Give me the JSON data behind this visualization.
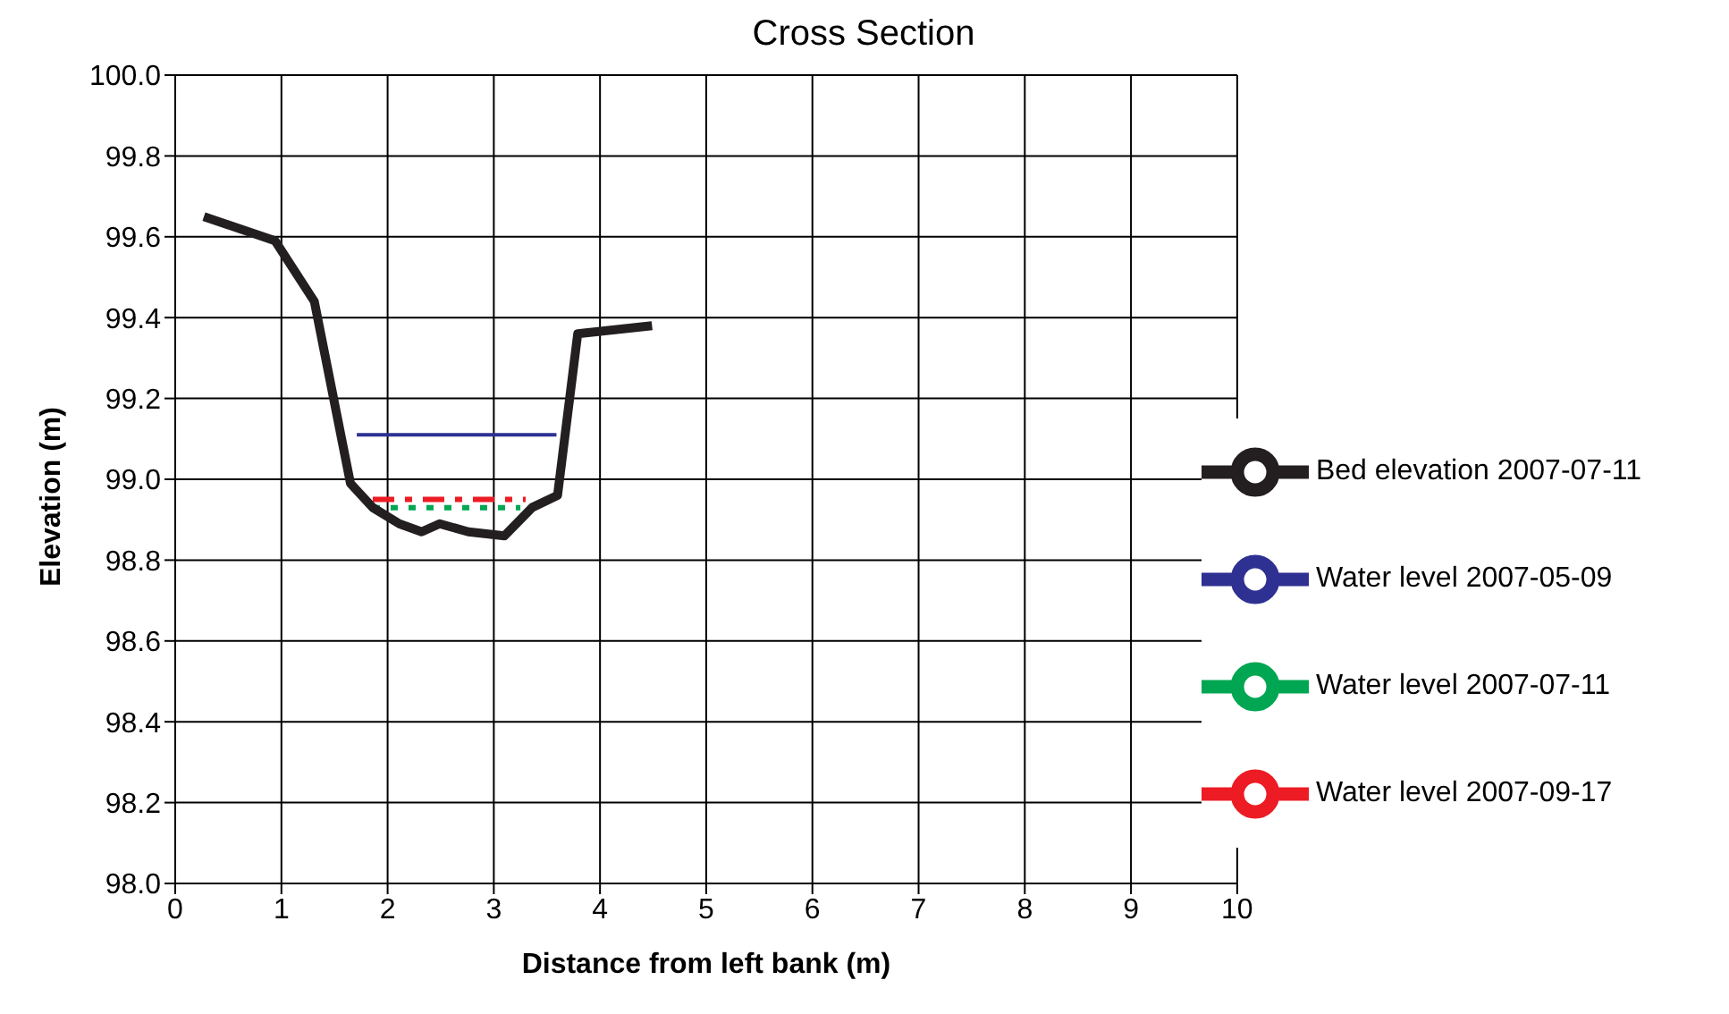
{
  "chart_data": {
    "type": "line",
    "title": "Cross Section",
    "xlabel": "Distance from left bank (m)",
    "ylabel": "Elevation (m)",
    "xlim": [
      0,
      10
    ],
    "xticks": [
      0,
      1,
      2,
      3,
      4,
      5,
      6,
      7,
      8,
      9,
      10
    ],
    "ylim": [
      98,
      100
    ],
    "yticks": [
      {
        "value": 98,
        "label": "98.0"
      },
      {
        "value": 98.2,
        "label": "98.2"
      },
      {
        "value": 98.4,
        "label": "98.4"
      },
      {
        "value": 98.6,
        "label": "98.6"
      },
      {
        "value": 98.8,
        "label": "98.8"
      },
      {
        "value": 99,
        "label": "99.0"
      },
      {
        "value": 99.2,
        "label": "99.2"
      },
      {
        "value": 99.4,
        "label": "99.4"
      },
      {
        "value": 99.6,
        "label": "99.6"
      },
      {
        "value": 99.8,
        "label": "99.8"
      },
      {
        "value": 100,
        "label": "100.0"
      }
    ],
    "grid": true,
    "legend": "right",
    "marker": "none",
    "series": [
      {
        "name": "Water level 2007-05-09",
        "color": "#2e3192",
        "line_style": "solid",
        "x": [
          1.71,
          3.59
        ],
        "values": [
          99.11,
          99.11
        ]
      },
      {
        "name": "Water level 2007-07-11",
        "color": "#00a651",
        "line_style": "dotted",
        "x": [
          1.86,
          3.25
        ],
        "values": [
          98.93,
          98.93
        ]
      },
      {
        "name": "Water level 2007-09-17",
        "color": "#ed1c24",
        "line_style": "dashed",
        "x": [
          1.86,
          3.3
        ],
        "values": [
          98.95,
          98.95
        ]
      },
      {
        "name": "Bed elevation 2007-07-11",
        "color": "#231f20",
        "line_style": "solid",
        "x": [
          0.27,
          0.94,
          1.31,
          1.65,
          1.86,
          2.11,
          2.32,
          2.49,
          2.76,
          3.1,
          3.36,
          3.6,
          3.79,
          4.49
        ],
        "values": [
          99.65,
          99.59,
          99.44,
          98.99,
          98.93,
          98.89,
          98.87,
          98.89,
          98.87,
          98.86,
          98.93,
          98.96,
          99.36,
          99.38
        ]
      }
    ]
  }
}
